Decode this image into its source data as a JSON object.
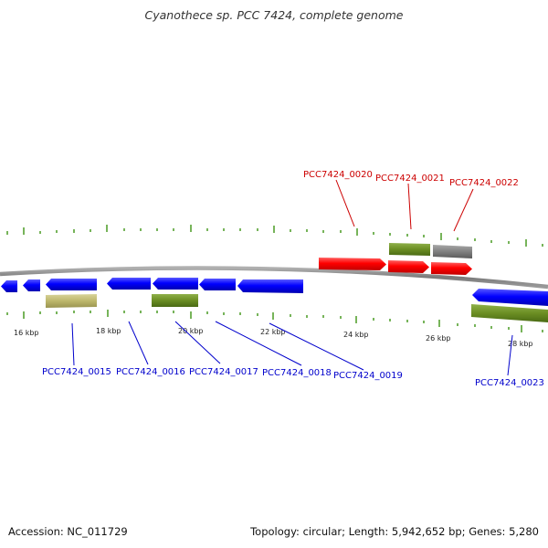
{
  "title": "Cyanothece sp. PCC 7424, complete genome",
  "footer": {
    "accession": "Accession: NC_011729",
    "summary": "Topology: circular; Length: 5,942,652 bp; Genes: 5,280"
  },
  "colors": {
    "cds_forward": "#ff0000",
    "cds_reverse": "#0000ff",
    "feature_olive": "#6b8e23",
    "feature_tan": "#bdb76b",
    "feature_gray": "#808080",
    "backbone": "#888888",
    "ticks": "#2e8b00"
  },
  "diagram": {
    "ticks": [
      {
        "kbp": 16,
        "label": "16 kbp"
      },
      {
        "kbp": 18,
        "label": "18 kbp"
      },
      {
        "kbp": 20,
        "label": "20 kbp"
      },
      {
        "kbp": 22,
        "label": "22 kbp"
      },
      {
        "kbp": 24,
        "label": "24 kbp"
      },
      {
        "kbp": 26,
        "label": "26 kbp"
      },
      {
        "kbp": 28,
        "label": "28 kbp"
      }
    ],
    "gene_labels": [
      {
        "name": "PCC7424_0015",
        "strand": "reverse"
      },
      {
        "name": "PCC7424_0016",
        "strand": "reverse"
      },
      {
        "name": "PCC7424_0017",
        "strand": "reverse"
      },
      {
        "name": "PCC7424_0018",
        "strand": "reverse"
      },
      {
        "name": "PCC7424_0019",
        "strand": "reverse"
      },
      {
        "name": "PCC7424_0020",
        "strand": "forward"
      },
      {
        "name": "PCC7424_0021",
        "strand": "forward"
      },
      {
        "name": "PCC7424_0022",
        "strand": "forward"
      },
      {
        "name": "PCC7424_0023",
        "strand": "reverse"
      }
    ]
  }
}
